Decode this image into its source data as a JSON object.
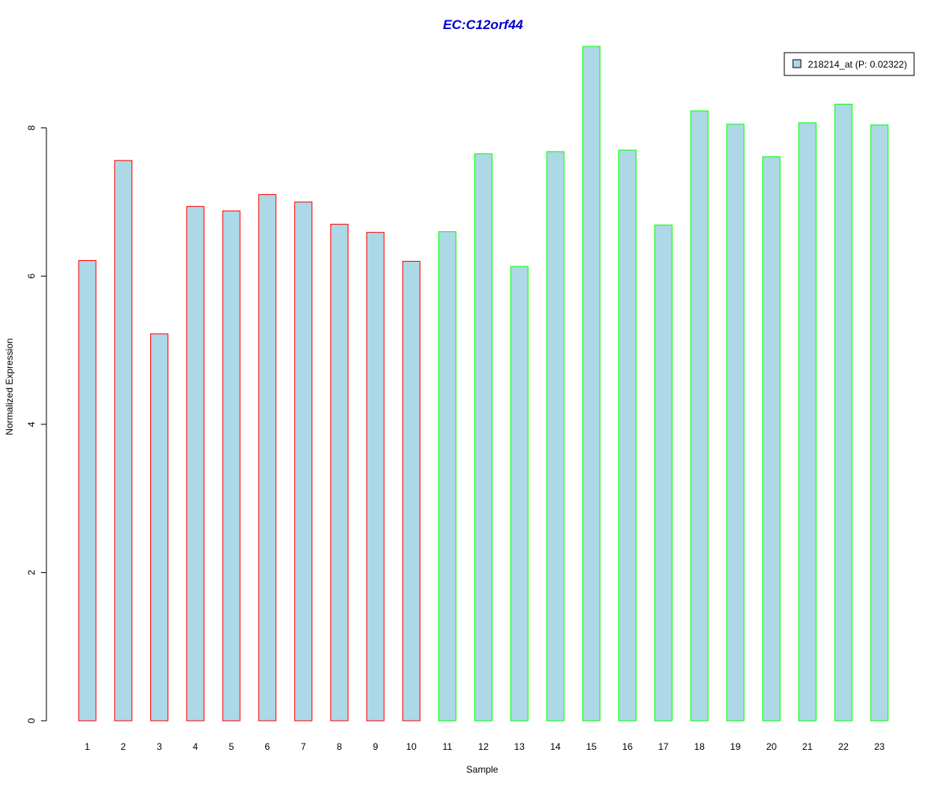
{
  "chart_data": {
    "type": "bar",
    "title": "EC:C12orf44",
    "xlabel": "Sample",
    "ylabel": "Normalized Expression",
    "ylim": [
      0,
      9.1
    ],
    "yticks": [
      0,
      2,
      4,
      6,
      8
    ],
    "categories": [
      "1",
      "2",
      "3",
      "4",
      "5",
      "6",
      "7",
      "8",
      "9",
      "10",
      "11",
      "12",
      "13",
      "14",
      "15",
      "16",
      "17",
      "18",
      "19",
      "20",
      "21",
      "22",
      "23"
    ],
    "values": [
      6.21,
      7.56,
      5.22,
      6.94,
      6.88,
      7.1,
      7.0,
      6.7,
      6.59,
      6.2,
      6.6,
      7.65,
      6.13,
      7.68,
      9.1,
      7.7,
      6.69,
      8.23,
      8.05,
      7.61,
      8.07,
      8.32,
      8.04
    ],
    "groups": [
      "A",
      "A",
      "A",
      "A",
      "A",
      "A",
      "A",
      "A",
      "A",
      "A",
      "B",
      "B",
      "B",
      "B",
      "B",
      "B",
      "B",
      "B",
      "B",
      "B",
      "B",
      "B",
      "B"
    ],
    "grid": false,
    "legend": {
      "placement": "top-right",
      "entries": [
        {
          "label": "218214_at (P: 0.02322)"
        }
      ]
    },
    "colors": {
      "bar_fill": "#add8e6",
      "group_A_border": "#ff0000",
      "group_B_border": "#00ff00",
      "title": "#0000cd"
    }
  }
}
